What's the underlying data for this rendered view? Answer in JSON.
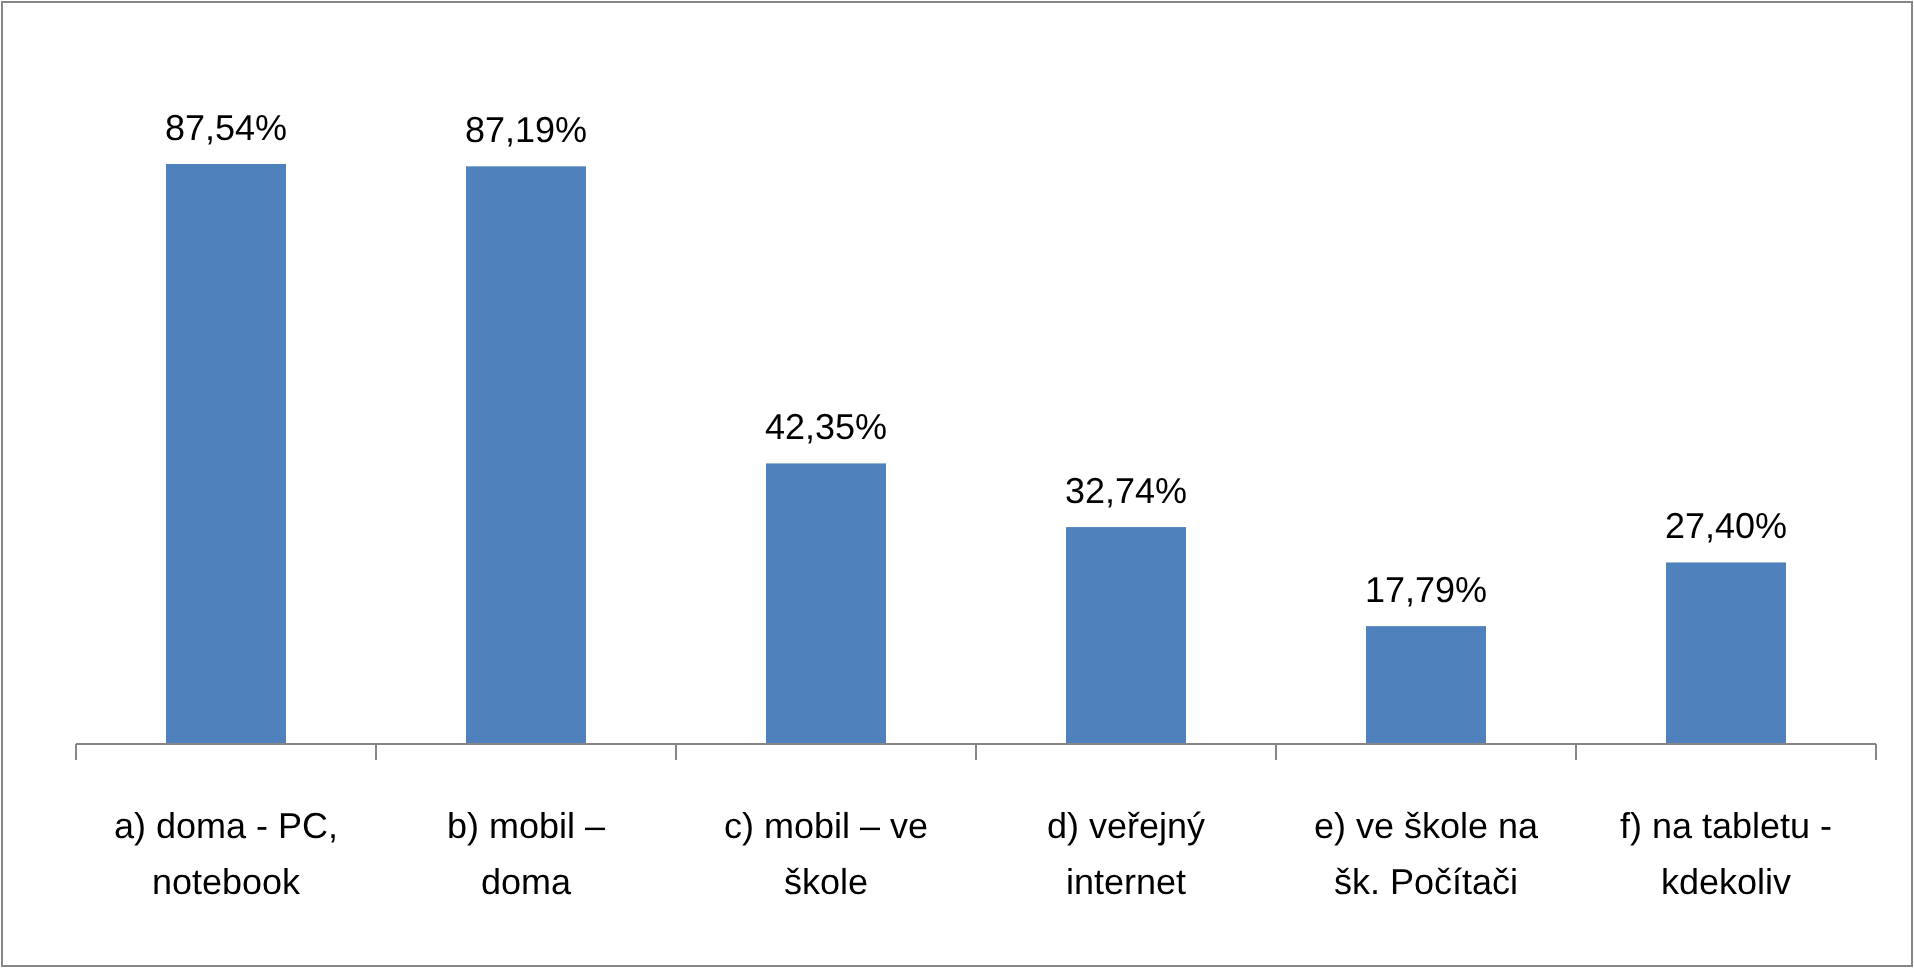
{
  "chart_data": {
    "type": "bar",
    "categories": [
      "a) doma - PC, notebook",
      "b) mobil – doma",
      "c) mobil – ve škole",
      "d) veřejný internet",
      "e) ve škole na šk. Počítači",
      "f) na tabletu - kdekoliv"
    ],
    "values": [
      87.54,
      87.19,
      42.35,
      32.74,
      17.79,
      27.4
    ],
    "value_labels": [
      "87,54%",
      "87,19%",
      "42,35%",
      "32,74%",
      "17,79%",
      "27,40%"
    ],
    "color": "#4f81bd"
  }
}
